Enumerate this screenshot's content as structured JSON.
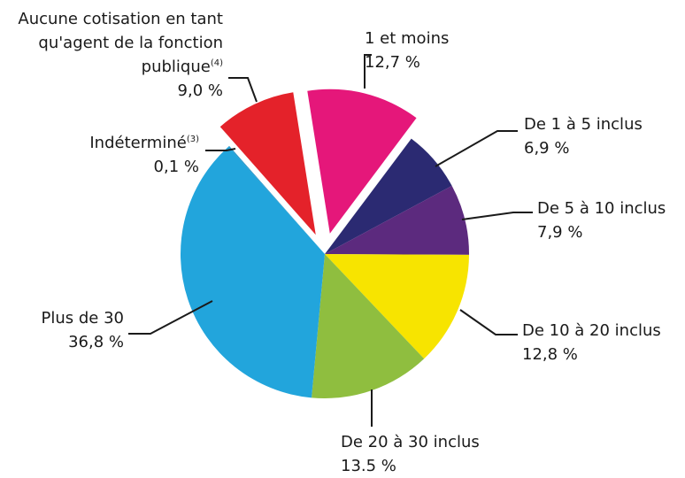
{
  "chart_data": {
    "type": "pie",
    "categories": [
      "1 et moins",
      "De 1 à 5 inclus",
      "De 5 à 10 inclus",
      "De 10 à 20 inclus",
      "De 20 à 30 inclus",
      "Plus de 30",
      "Indéterminé",
      "Aucune cotisation en tant qu'agent de la fonction publique"
    ],
    "notes": [
      null,
      null,
      null,
      null,
      null,
      null,
      "(3)",
      "(4)"
    ],
    "values": [
      12.7,
      6.9,
      7.9,
      12.8,
      13.5,
      36.8,
      0.1,
      9.0
    ],
    "value_labels": [
      "12,7 %",
      "6,9 %",
      "7,9 %",
      "12,8 %",
      "13.5 %",
      "36,8 %",
      "0,1 %",
      "9,0 %"
    ],
    "colors": [
      "#e5177a",
      "#2b2a72",
      "#5c2a7e",
      "#f7e400",
      "#8fbe3f",
      "#22a5dc",
      "#1f8fc4",
      "#e4222a"
    ],
    "explode": [
      true,
      false,
      false,
      false,
      false,
      false,
      false,
      true
    ]
  }
}
